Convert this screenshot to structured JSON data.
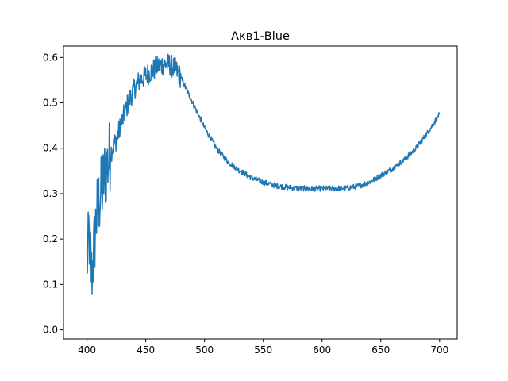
{
  "chart_data": {
    "type": "line",
    "title": "Акв1-Blue",
    "xlabel": "",
    "ylabel": "",
    "xlim": [
      380,
      715
    ],
    "ylim": [
      -0.02,
      0.625
    ],
    "xticks": [
      400,
      450,
      500,
      550,
      600,
      650,
      700
    ],
    "yticks": [
      0.0,
      0.1,
      0.2,
      0.3,
      0.4,
      0.5,
      0.6
    ],
    "xtick_labels": [
      "400",
      "450",
      "500",
      "550",
      "600",
      "650",
      "700"
    ],
    "ytick_labels": [
      "0.0",
      "0.1",
      "0.2",
      "0.3",
      "0.4",
      "0.5",
      "0.6"
    ],
    "grid": false,
    "legend": "none",
    "series": [
      {
        "color": "#1f77b4",
        "x": [
          400,
          402,
          404,
          406,
          408,
          410,
          412,
          415,
          418,
          420,
          425,
          430,
          435,
          440,
          445,
          450,
          455,
          460,
          465,
          470,
          475,
          480,
          490,
          500,
          510,
          520,
          530,
          540,
          550,
          560,
          570,
          580,
          590,
          600,
          610,
          620,
          630,
          640,
          650,
          660,
          670,
          680,
          690,
          700
        ],
        "y": [
          0.15,
          0.2,
          0.12,
          0.18,
          0.25,
          0.28,
          0.3,
          0.34,
          0.37,
          0.39,
          0.42,
          0.46,
          0.5,
          0.53,
          0.55,
          0.56,
          0.57,
          0.58,
          0.585,
          0.585,
          0.575,
          0.555,
          0.5,
          0.445,
          0.4,
          0.37,
          0.35,
          0.335,
          0.325,
          0.318,
          0.314,
          0.312,
          0.311,
          0.311,
          0.311,
          0.312,
          0.316,
          0.325,
          0.34,
          0.355,
          0.375,
          0.4,
          0.435,
          0.475
        ]
      }
    ]
  }
}
